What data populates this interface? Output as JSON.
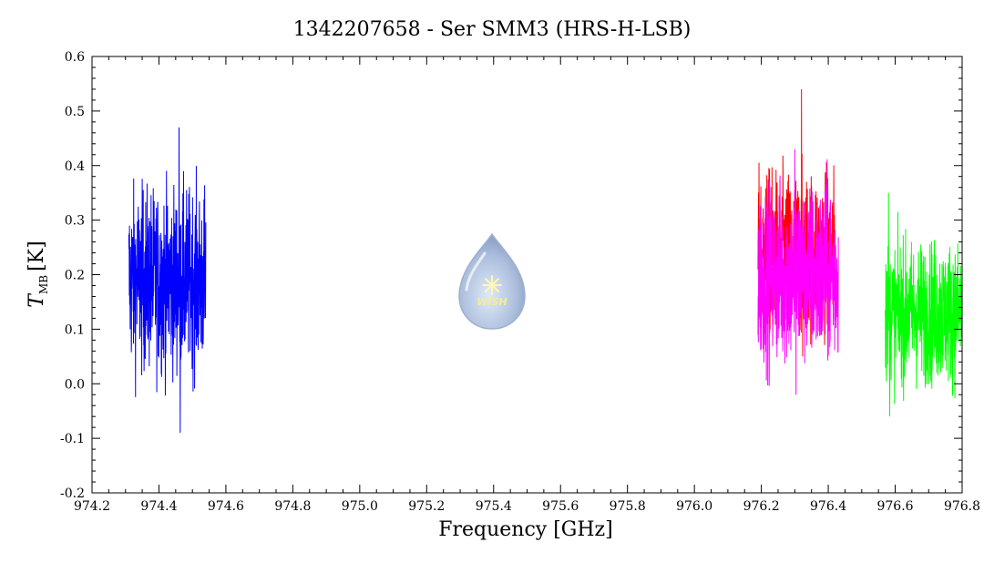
{
  "chart_data": {
    "type": "line",
    "title": "1342207658 - Ser SMM3 (HRS-H-LSB)",
    "xlabel": "Frequency [GHz]",
    "ylabel": "T",
    "ylabel_sub": "MB",
    "ylabel_unit": "[K]",
    "xlim": [
      974.2,
      976.8
    ],
    "ylim": [
      -0.2,
      0.6
    ],
    "x_ticks": [
      "974.2",
      "974.4",
      "974.6",
      "974.8",
      "975.0",
      "975.2",
      "975.4",
      "975.6",
      "975.8",
      "976.0",
      "976.2",
      "976.4",
      "976.6",
      "976.8"
    ],
    "y_ticks": [
      "-0.2",
      "-0.1",
      "0.0",
      "0.1",
      "0.2",
      "0.3",
      "0.4",
      "0.5",
      "0.6"
    ],
    "grid": false,
    "logo_text": "WISH",
    "series": [
      {
        "color": "#0000ff",
        "x_range": [
          974.31,
          974.54
        ],
        "mean": 0.19,
        "noise": 0.09,
        "min": -0.09,
        "max": 0.47,
        "peak_x": 974.46
      },
      {
        "color": "#ff0000",
        "x_range": [
          976.19,
          976.42
        ],
        "mean": 0.24,
        "noise": 0.08,
        "min": 0.05,
        "max": 0.54,
        "peak_x": 976.32
      },
      {
        "color": "#ff00ff",
        "x_range": [
          976.19,
          976.43
        ],
        "mean": 0.2,
        "noise": 0.09,
        "min": -0.02,
        "max": 0.43,
        "peak_x": 976.3
      },
      {
        "color": "#00ff00",
        "x_range": [
          976.57,
          976.8
        ],
        "mean": 0.13,
        "noise": 0.07,
        "min": -0.06,
        "max": 0.35,
        "peak_x": 976.58
      }
    ]
  }
}
